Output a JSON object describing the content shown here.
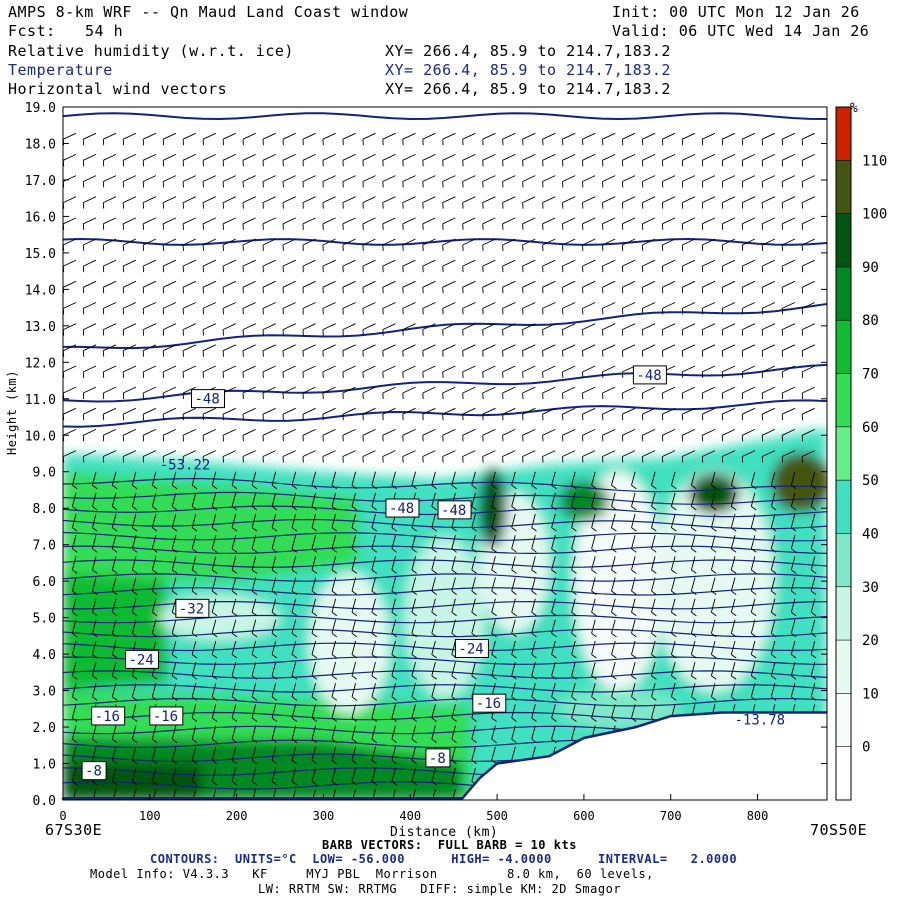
{
  "header": {
    "title": "AMPS 8-km WRF -- Qn Maud Land Coast window",
    "forecast_label": "Fcst:",
    "forecast_hours": "54 h",
    "init": "Init: 00 UTC Mon 12 Jan 26",
    "valid": "Valid: 06 UTC Wed 14 Jan 26",
    "fields": [
      {
        "name": "Relative humidity (w.r.t. ice)",
        "xy": "XY= 266.4, 85.9 to 214.7,183.2"
      },
      {
        "name": "Temperature",
        "xy": "XY= 266.4, 85.9 to 214.7,183.2"
      },
      {
        "name": "Horizontal wind vectors",
        "xy": "XY= 266.4, 85.9 to 214.7,183.2"
      }
    ]
  },
  "chart_data": {
    "type": "heatmap",
    "xlabel": "Distance (km)",
    "ylabel": "Height (km)",
    "xlim": [
      0,
      880
    ],
    "ylim": [
      0,
      19
    ],
    "x_ticks": [
      0,
      100,
      200,
      300,
      400,
      500,
      600,
      700,
      800
    ],
    "y_ticks": [
      "0.0",
      "1.0",
      "2.0",
      "3.0",
      "4.0",
      "5.0",
      "6.0",
      "7.0",
      "8.0",
      "9.0",
      "10.0",
      "11.0",
      "12.0",
      "13.0",
      "14.0",
      "15.0",
      "16.0",
      "17.0",
      "18.0",
      "19.0"
    ],
    "left_endpoint": "67S30E",
    "right_endpoint": "70S50E",
    "colorbar": {
      "unit": "%",
      "levels": [
        0,
        10,
        20,
        30,
        40,
        50,
        60,
        70,
        80,
        90,
        100,
        110
      ],
      "colors": [
        "#ffffff",
        "#f4fbf8",
        "#e6faf2",
        "#c8f5e6",
        "#7fe8c8",
        "#40e0c0",
        "#66ee88",
        "#33dd55",
        "#11bb33",
        "#008822",
        "#005511",
        "#445511",
        "#cc2200"
      ]
    },
    "temperature_contour_labels": [
      "-48",
      "-48",
      "-53.22",
      "-48",
      "-48",
      "-32",
      "-24",
      "-24",
      "-16",
      "-16",
      "-16",
      "-8",
      "-8",
      "-13.78"
    ],
    "terrain_km": [
      [
        0,
        0.05
      ],
      [
        100,
        0.05
      ],
      [
        200,
        0.05
      ],
      [
        300,
        0.05
      ],
      [
        400,
        0.05
      ],
      [
        460,
        0.05
      ],
      [
        480,
        0.6
      ],
      [
        500,
        1.0
      ],
      [
        560,
        1.2
      ],
      [
        600,
        1.7
      ],
      [
        660,
        2.0
      ],
      [
        700,
        2.3
      ],
      [
        760,
        2.4
      ],
      [
        880,
        2.4
      ]
    ],
    "notes": {
      "barb": "BARB VECTORS:  FULL BARB = 10 kts",
      "contours": "CONTOURS:  UNITS=°C  LOW= -56.000      HIGH= -4.0000      INTERVAL=   2.0000"
    }
  },
  "footer": {
    "model_info": "Model Info: V4.3.3   KF     MYJ PBL  Morrison         8.0 km,  60 levels,",
    "model_info2": "LW: RRTM SW: RRTMG   DIFF: simple KM: 2D Smagor"
  }
}
